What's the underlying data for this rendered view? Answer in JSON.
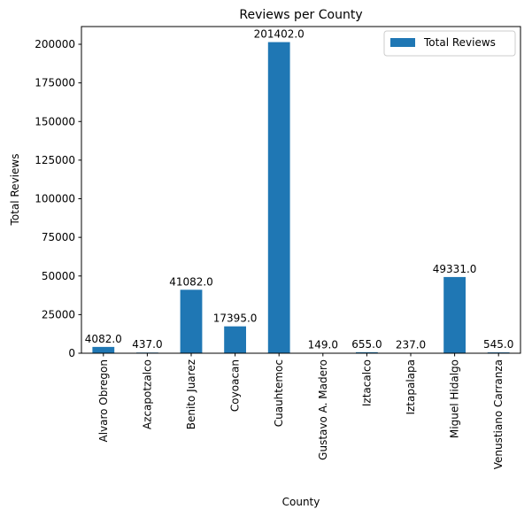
{
  "chart_data": {
    "type": "bar",
    "title": "Reviews per County",
    "xlabel": "County",
    "ylabel": "Total Reviews",
    "categories": [
      "Alvaro Obregon",
      "Azcapotzalco",
      "Benito Juarez",
      "Coyoacan",
      "Cuauhtemoc",
      "Gustavo A. Madero",
      "Iztacalco",
      "Iztapalapa",
      "Miguel Hidalgo",
      "Venustiano Carranza"
    ],
    "series": [
      {
        "name": "Total Reviews",
        "values": [
          4082.0,
          437.0,
          41082.0,
          17395.0,
          201402.0,
          149.0,
          655.0,
          237.0,
          49331.0,
          545.0
        ],
        "data_labels": [
          "4082.0",
          "437.0",
          "41082.0",
          "17395.0",
          "201402.0",
          "149.0",
          "655.0",
          "237.0",
          "49331.0",
          "545.0"
        ]
      }
    ],
    "yticks": [
      0,
      25000,
      50000,
      75000,
      100000,
      125000,
      150000,
      175000,
      200000
    ],
    "ylim": [
      0,
      211472
    ],
    "grid": false,
    "legend_position": "top-right",
    "bar_color": "#1f77b4"
  }
}
